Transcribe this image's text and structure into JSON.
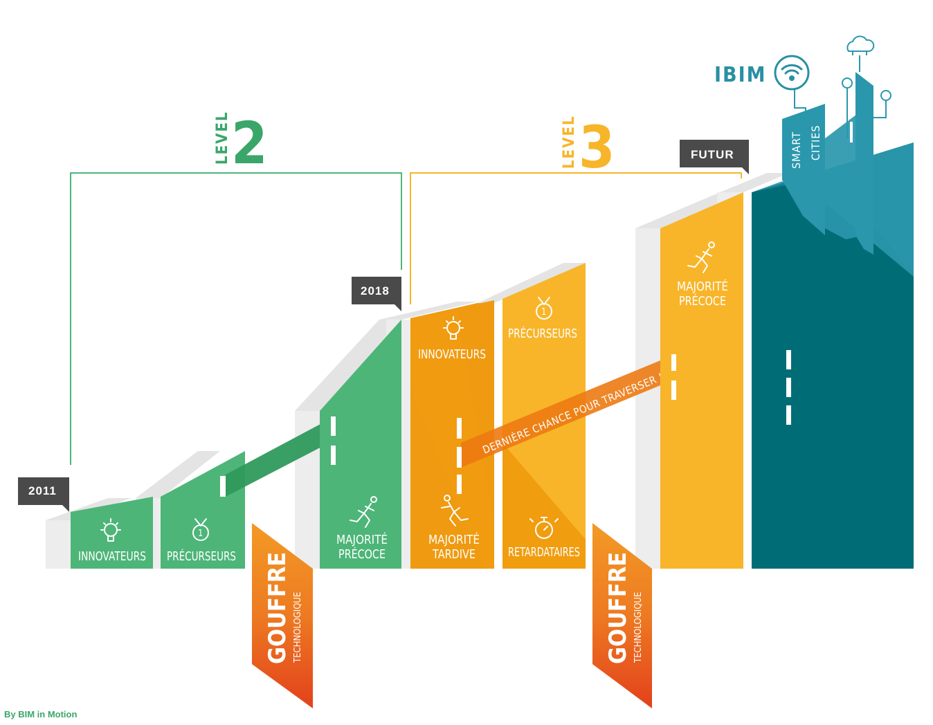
{
  "levels": {
    "level2": {
      "word": "LEVEL",
      "number": "2",
      "color": "#3aa66a"
    },
    "level3": {
      "word": "LEVEL",
      "number": "3",
      "color": "#f7b52a"
    }
  },
  "years": {
    "y2011": "2011",
    "y2018": "2018",
    "futur": "FUTUR"
  },
  "segments": {
    "innovateurs_1": "INNOVATEURS",
    "precurseurs_1": "PRÉCURSEURS",
    "majorite_precoce_1": [
      "MAJORITÉ",
      "PRÉCOCE"
    ],
    "innovateurs_2": "INNOVATEURS",
    "precurseurs_2": "PRÉCURSEURS",
    "majorite_tardive": [
      "MAJORITÉ",
      "TARDIVE"
    ],
    "retardataires": "RETARDATAIRES",
    "majorite_precoce_2": [
      "MAJORITÉ",
      "PRÉCOCE"
    ]
  },
  "gouffre": {
    "word1": "GOUFFRE",
    "word2": "TECHNOLOGIQUE"
  },
  "bridge_label": "DERNIÈRE CHANCE POUR TRAVERSER !",
  "ibim": {
    "logo": "IBIM",
    "smart": "SMART",
    "cities": "CITIES"
  },
  "colors": {
    "green": "#4db578",
    "dark_green": "#2f9a5c",
    "orange": "#ef9a10",
    "yellow": "#f8b52a",
    "teal": "#006d76",
    "light_teal": "#2a97ad",
    "red_orange": "#e84e1b",
    "grey_tag": "#4a4a4a"
  },
  "credit": "By BIM in Motion"
}
